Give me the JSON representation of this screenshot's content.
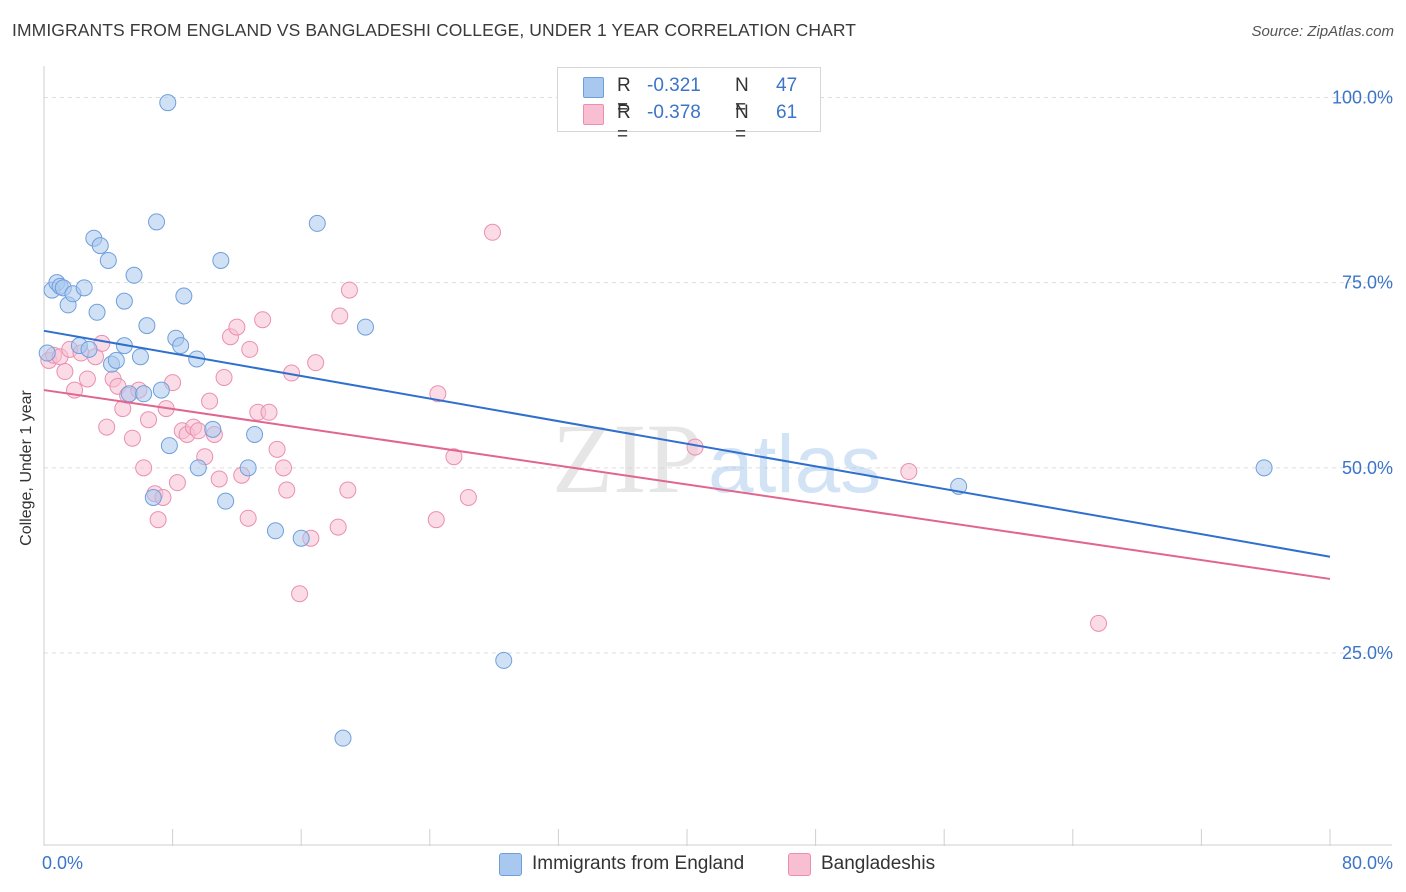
{
  "header": {
    "title": "IMMIGRANTS FROM ENGLAND VS BANGLADESHI COLLEGE, UNDER 1 YEAR CORRELATION CHART",
    "source": "Source: ZipAtlas.com"
  },
  "colors": {
    "blue_fill": "#a9c8ef",
    "blue_stroke": "#6f9fdb",
    "blue_line": "#2f6fce",
    "pink_fill": "#f7bfd1",
    "pink_stroke": "#ea8fb0",
    "pink_line": "#e0658f",
    "tick_label": "#3b74c8",
    "grid": "#dddddd"
  },
  "legend": {
    "rows": [
      {
        "r_label": "R =",
        "r_value": "-0.321",
        "n_label": "N =",
        "n_value": "47"
      },
      {
        "r_label": "R =",
        "r_value": "-0.378",
        "n_label": "N =",
        "n_value": "61"
      }
    ]
  },
  "watermark": {
    "zip": "ZIP",
    "atlas": "atlas"
  },
  "chart_data": {
    "type": "scatter",
    "title": "IMMIGRANTS FROM ENGLAND VS BANGLADESHI COLLEGE, UNDER 1 YEAR CORRELATION CHART",
    "xlabel": "",
    "ylabel": "College, Under 1 year",
    "xlim": [
      0,
      80
    ],
    "ylim": [
      4,
      104
    ],
    "x_tick_labels": [
      "0.0%",
      "80.0%"
    ],
    "y_ticks": [
      25,
      50,
      75,
      100
    ],
    "y_tick_labels": [
      "25.0%",
      "50.0%",
      "75.0%",
      "100.0%"
    ],
    "grid": true,
    "legend_position": "top-center",
    "series": [
      {
        "name": "Immigrants from England",
        "color": "#a9c8ef",
        "trend": {
          "x": [
            0,
            80
          ],
          "y": [
            68.5,
            38.0
          ]
        },
        "points": [
          [
            0.2,
            65.5
          ],
          [
            0.5,
            74.0
          ],
          [
            0.8,
            75.0
          ],
          [
            1.0,
            74.5
          ],
          [
            1.2,
            74.3
          ],
          [
            1.5,
            72.0
          ],
          [
            1.8,
            73.5
          ],
          [
            2.5,
            74.3
          ],
          [
            2.2,
            66.5
          ],
          [
            2.8,
            66.0
          ],
          [
            3.1,
            81.0
          ],
          [
            3.5,
            80.0
          ],
          [
            4.0,
            78.0
          ],
          [
            3.3,
            71.0
          ],
          [
            5.6,
            76.0
          ],
          [
            5.0,
            72.5
          ],
          [
            6.4,
            69.2
          ],
          [
            6.0,
            65.0
          ],
          [
            5.0,
            66.5
          ],
          [
            4.2,
            64.0
          ],
          [
            4.5,
            64.5
          ],
          [
            5.3,
            60.0
          ],
          [
            6.2,
            60.0
          ],
          [
            7.3,
            60.5
          ],
          [
            7.0,
            83.2
          ],
          [
            7.8,
            53.0
          ],
          [
            6.8,
            46.0
          ],
          [
            8.2,
            67.5
          ],
          [
            8.5,
            66.5
          ],
          [
            8.7,
            73.2
          ],
          [
            9.5,
            64.7
          ],
          [
            9.6,
            50.0
          ],
          [
            10.5,
            55.2
          ],
          [
            11.0,
            78.0
          ],
          [
            11.3,
            45.5
          ],
          [
            12.7,
            50.0
          ],
          [
            13.1,
            54.5
          ],
          [
            14.4,
            41.5
          ],
          [
            16.0,
            40.5
          ],
          [
            17.0,
            83.0
          ],
          [
            20.0,
            69.0
          ],
          [
            28.6,
            24.0
          ],
          [
            18.6,
            13.5
          ],
          [
            33.1,
            100.3
          ],
          [
            7.7,
            99.3
          ],
          [
            56.9,
            47.5
          ],
          [
            75.9,
            50.0
          ]
        ]
      },
      {
        "name": "Bangladeshis",
        "color": "#f7bfd1",
        "trend": {
          "x": [
            0,
            80
          ],
          "y": [
            60.5,
            35.0
          ]
        },
        "points": [
          [
            0.3,
            64.5
          ],
          [
            0.6,
            65.2
          ],
          [
            1.0,
            65.0
          ],
          [
            1.3,
            63.0
          ],
          [
            1.6,
            66.0
          ],
          [
            1.9,
            60.5
          ],
          [
            2.3,
            65.5
          ],
          [
            2.7,
            62.0
          ],
          [
            3.2,
            65.0
          ],
          [
            3.6,
            66.8
          ],
          [
            3.9,
            55.5
          ],
          [
            4.3,
            62.0
          ],
          [
            4.6,
            61.0
          ],
          [
            4.9,
            58.0
          ],
          [
            5.2,
            59.8
          ],
          [
            5.5,
            54.0
          ],
          [
            5.9,
            60.5
          ],
          [
            6.2,
            50.0
          ],
          [
            6.5,
            56.5
          ],
          [
            6.9,
            46.5
          ],
          [
            7.1,
            43.0
          ],
          [
            7.4,
            46.0
          ],
          [
            7.6,
            58.0
          ],
          [
            8.0,
            61.5
          ],
          [
            8.3,
            48.0
          ],
          [
            8.6,
            55.0
          ],
          [
            8.9,
            54.5
          ],
          [
            9.3,
            55.5
          ],
          [
            9.6,
            55.0
          ],
          [
            10.0,
            51.5
          ],
          [
            10.3,
            59.0
          ],
          [
            10.6,
            54.5
          ],
          [
            10.9,
            48.5
          ],
          [
            11.2,
            62.2
          ],
          [
            11.6,
            67.7
          ],
          [
            12.0,
            69.0
          ],
          [
            12.3,
            49.0
          ],
          [
            12.7,
            43.2
          ],
          [
            12.8,
            66.0
          ],
          [
            13.3,
            57.5
          ],
          [
            13.6,
            70.0
          ],
          [
            14.0,
            57.5
          ],
          [
            14.5,
            52.5
          ],
          [
            14.9,
            50.0
          ],
          [
            15.1,
            47.0
          ],
          [
            15.4,
            62.8
          ],
          [
            15.9,
            33.0
          ],
          [
            16.6,
            40.5
          ],
          [
            16.9,
            64.2
          ],
          [
            18.3,
            42.0
          ],
          [
            18.9,
            47.0
          ],
          [
            18.4,
            70.5
          ],
          [
            19.0,
            74.0
          ],
          [
            24.4,
            43.0
          ],
          [
            24.5,
            60.0
          ],
          [
            25.5,
            51.5
          ],
          [
            26.4,
            46.0
          ],
          [
            27.9,
            81.8
          ],
          [
            40.5,
            52.8
          ],
          [
            53.8,
            49.5
          ],
          [
            65.6,
            29.0
          ]
        ]
      }
    ]
  }
}
